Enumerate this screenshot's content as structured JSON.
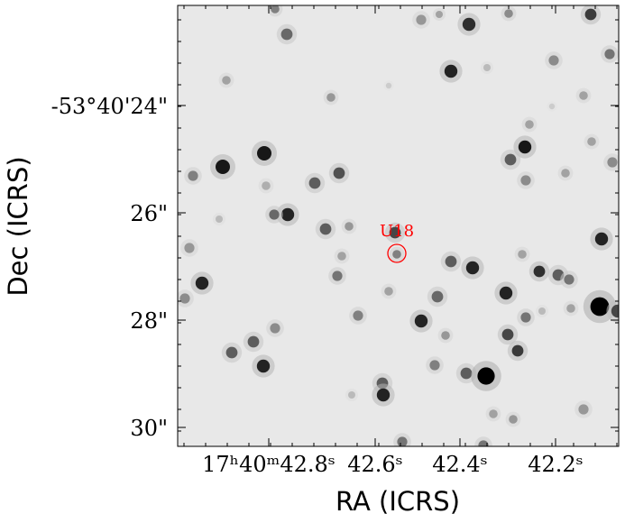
{
  "figure": {
    "xlabel": "RA (ICRS)",
    "ylabel": "Dec (ICRS)",
    "x_ticks": [
      {
        "label": "17ʰ40ᵐ42.8ˢ"
      },
      {
        "label": "42.6ˢ"
      },
      {
        "label": "42.4ˢ"
      },
      {
        "label": "42.2ˢ"
      }
    ],
    "y_ticks": [
      {
        "label": "-53°40'24\""
      },
      {
        "label": "26\""
      },
      {
        "label": "28\""
      },
      {
        "label": "30\""
      }
    ],
    "marker": {
      "label": "U18",
      "color": "#ff0000"
    },
    "colormap": "grayscale-inverted",
    "background_color": "#e8e8e8"
  }
}
